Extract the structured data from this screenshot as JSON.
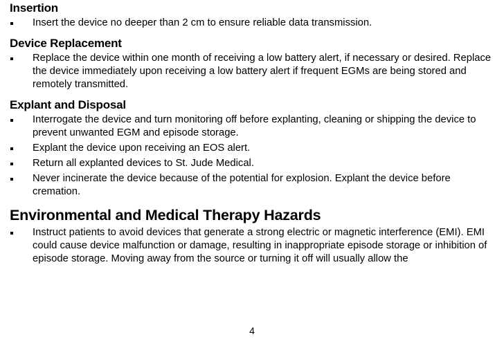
{
  "sections": {
    "insertion": {
      "heading": "Insertion",
      "items": [
        "Insert the device no deeper than 2 cm to ensure reliable data transmission."
      ]
    },
    "device_replacement": {
      "heading": "Device Replacement",
      "items": [
        "Replace the device within one month of receiving a low battery alert, if necessary or desired. Replace the device immediately upon receiving a low battery alert if frequent EGMs are being stored and remotely transmitted."
      ]
    },
    "explant_disposal": {
      "heading": "Explant and Disposal",
      "items": [
        "Interrogate the device and turn monitoring off before explanting, cleaning or shipping the device to prevent unwanted EGM and episode storage.",
        "Explant the device upon receiving an EOS alert.",
        "Return all explanted devices to St. Jude Medical.",
        "Never incinerate the device because of the potential for explosion. Explant the device before cremation."
      ]
    },
    "env_hazards": {
      "heading": "Environmental and Medical Therapy Hazards",
      "items": [
        "Instruct patients to avoid devices that generate a strong electric or magnetic interference (EMI). EMI could cause device malfunction or damage, resulting in inappropriate episode storage or inhibition of episode storage. Moving away from the source or turning it off will usually allow the"
      ]
    }
  },
  "page_number": "4"
}
